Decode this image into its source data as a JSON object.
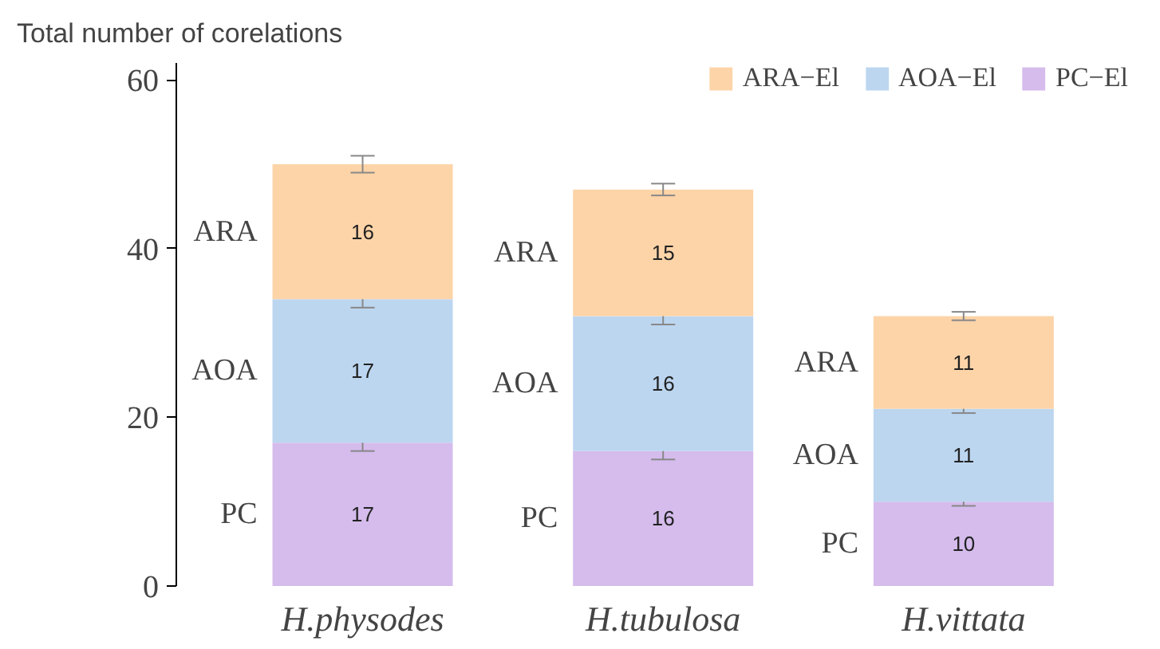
{
  "chart_data": {
    "type": "bar",
    "ylabel": "Total number of corelations",
    "categories": [
      "H.physodes",
      "H.tubulosa",
      "H.vittata"
    ],
    "stacked": true,
    "series": [
      {
        "name": "PC−El",
        "color": "#d5bcec",
        "values": [
          17,
          16,
          10
        ],
        "errors": [
          1,
          1,
          0.5
        ]
      },
      {
        "name": "AOA−El",
        "color": "#bcd6f0",
        "values": [
          17,
          16,
          11
        ],
        "errors": [
          1,
          1,
          0.5
        ]
      },
      {
        "name": "ARA−El",
        "color": "#fdd4a8",
        "values": [
          16,
          15,
          11
        ],
        "errors": [
          1,
          0.7,
          0.5
        ]
      }
    ],
    "ylim": [
      0,
      62
    ],
    "yticks": [
      0,
      20,
      40,
      60
    ],
    "grid": false,
    "legend": "top right",
    "data_labels": true,
    "annotations": [
      "PC",
      "AOA",
      "ARA",
      "PC",
      "AOA",
      "ARA",
      "PC",
      "AOA",
      "ARA"
    ]
  }
}
